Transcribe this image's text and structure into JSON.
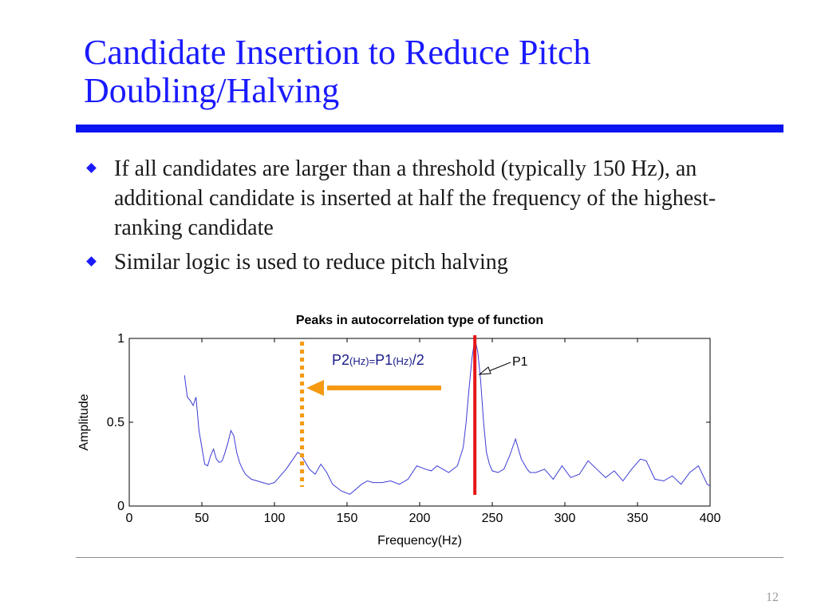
{
  "slide": {
    "title_lines": [
      "Candidate Insertion to Reduce Pitch",
      "Doubling/Halving"
    ],
    "bullets": [
      "If all candidates are larger than a  threshold (typically 150 Hz), an additional candidate is inserted at half the frequency of the highest-ranking candidate",
      "Similar logic is used to reduce pitch halving"
    ],
    "slide_number": "12",
    "colors": {
      "title": "#1a1aff",
      "rule": "#0a14f0",
      "curve": "#3b3bd6",
      "p1_line": "#e51616",
      "p2_line": "#f59a12"
    }
  },
  "chart_data": {
    "type": "line",
    "title": "Peaks in autocorrelation type of function",
    "xlabel": "Frequency(Hz)",
    "ylabel": "Amplitude",
    "xlim": [
      0,
      400
    ],
    "ylim": [
      0,
      1
    ],
    "xticks": [
      "0",
      "50",
      "100",
      "150",
      "200",
      "250",
      "300",
      "350",
      "400"
    ],
    "yticks": [
      "0",
      "0.5",
      "1"
    ],
    "series": [
      {
        "x": [
          38,
          40,
          42,
          44,
          46,
          48,
          50,
          52,
          54,
          56,
          58,
          60,
          62,
          64,
          66,
          68,
          70,
          72,
          74,
          76,
          78,
          80,
          84,
          88,
          92,
          96,
          100,
          104,
          108,
          112,
          116,
          118,
          120,
          124,
          128,
          132,
          136,
          140,
          146,
          152,
          156,
          160,
          164,
          168,
          174,
          180,
          186,
          192,
          198,
          204,
          208,
          212,
          216,
          220,
          226,
          230,
          232,
          234,
          236,
          238,
          240,
          242,
          244,
          246,
          248,
          250,
          254,
          258,
          262,
          266,
          270,
          274,
          276,
          280,
          286,
          292,
          298,
          304,
          310,
          316,
          322,
          328,
          334,
          340,
          346,
          352,
          356,
          362,
          368,
          374,
          380,
          386,
          392,
          398,
          400
        ],
        "y": [
          0.78,
          0.65,
          0.63,
          0.6,
          0.65,
          0.45,
          0.35,
          0.25,
          0.24,
          0.3,
          0.34,
          0.28,
          0.26,
          0.27,
          0.32,
          0.38,
          0.45,
          0.42,
          0.32,
          0.26,
          0.22,
          0.19,
          0.16,
          0.15,
          0.14,
          0.13,
          0.14,
          0.18,
          0.22,
          0.27,
          0.32,
          0.31,
          0.28,
          0.22,
          0.19,
          0.25,
          0.2,
          0.13,
          0.09,
          0.07,
          0.1,
          0.13,
          0.15,
          0.14,
          0.14,
          0.15,
          0.13,
          0.16,
          0.24,
          0.22,
          0.21,
          0.24,
          0.22,
          0.2,
          0.24,
          0.35,
          0.5,
          0.7,
          0.88,
          1.0,
          0.92,
          0.75,
          0.5,
          0.32,
          0.25,
          0.21,
          0.2,
          0.22,
          0.3,
          0.4,
          0.28,
          0.22,
          0.2,
          0.2,
          0.22,
          0.16,
          0.24,
          0.17,
          0.19,
          0.27,
          0.22,
          0.17,
          0.21,
          0.15,
          0.22,
          0.28,
          0.27,
          0.16,
          0.15,
          0.18,
          0.13,
          0.2,
          0.24,
          0.13,
          0.12
        ]
      }
    ],
    "annotations": {
      "p1_label": "P1",
      "p1_freq": 238,
      "p2_freq": 119,
      "p2_formula": {
        "a": "P2",
        "b": "(Hz)=",
        "c": "P1",
        "d": "(Hz)",
        "e": "/2"
      }
    }
  }
}
